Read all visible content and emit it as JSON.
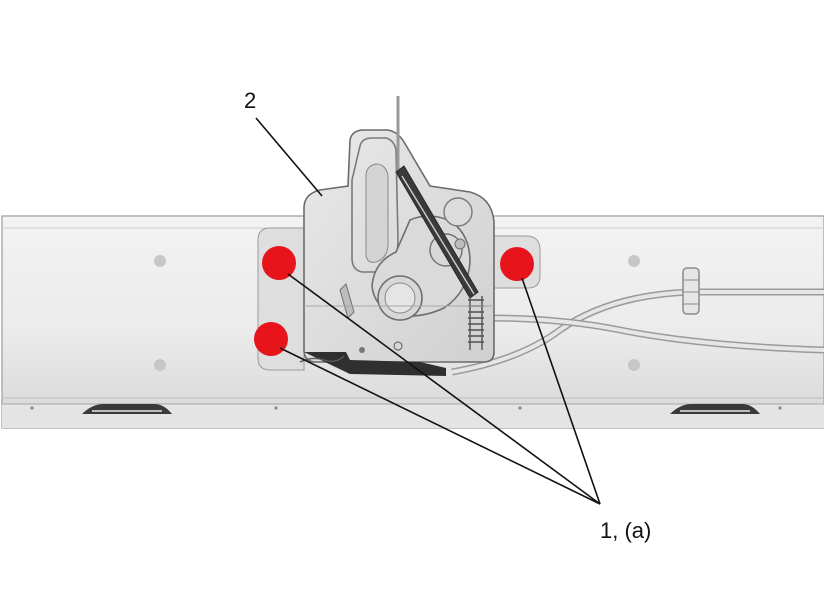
{
  "callouts": {
    "item_2": "2",
    "item_1a": "1, (a)"
  },
  "colors": {
    "bolt_highlight": "#e8141b",
    "part_fill": "#e2e2e2",
    "part_stroke": "#6b6b6b",
    "leader_line": "#111111"
  },
  "icons": {
    "bolt": "fastener-icon"
  }
}
